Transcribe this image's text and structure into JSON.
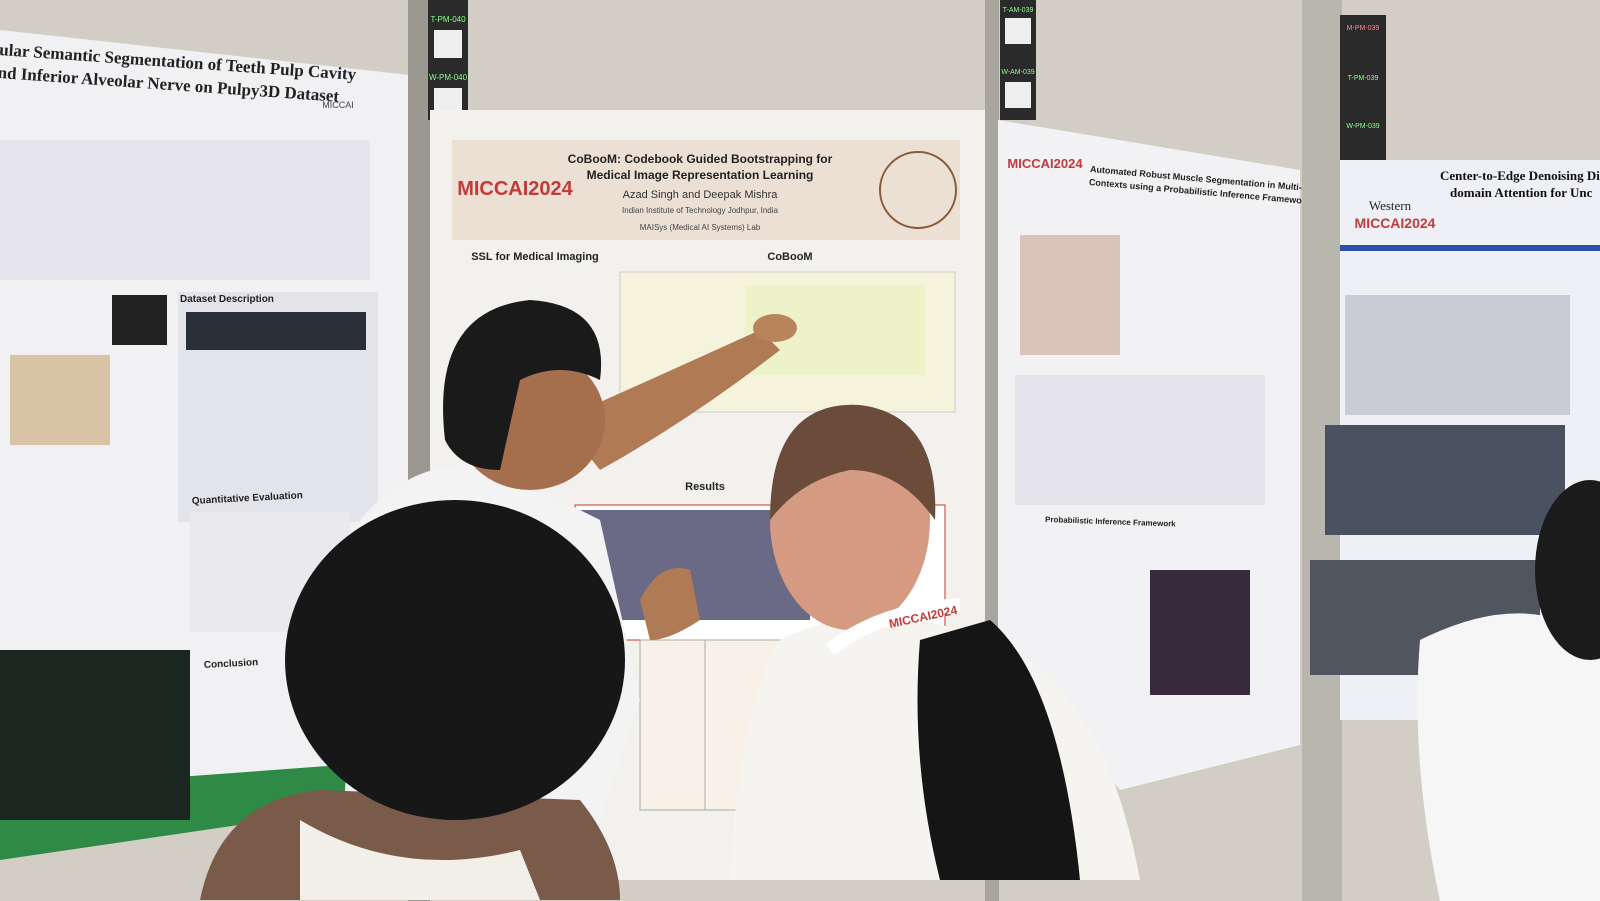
{
  "left_poster": {
    "title_lines": [
      "ular Semantic Segmentation of Teeth Pulp Cavity",
      "nd Inferior Alveolar Nerve on Pulpy3D Dataset"
    ],
    "logo": "MICCAI",
    "sections": [
      "Dataset Description",
      "Quantitative Evaluation",
      "Conclusion"
    ]
  },
  "center_poster": {
    "title_lines": [
      "CoBooM: Codebook Guided Bootstrapping for",
      "Medical Image Representation Learning"
    ],
    "authors": "Azad Singh and Deepak Mishra",
    "affiliation": "Indian Institute of Technology Jodhpur, India",
    "lab": "MAISys (Medical AI Systems) Lab",
    "logo": "MICCAI2024",
    "sections": [
      "SSL for Medical Imaging",
      "CoBooM",
      "Results"
    ]
  },
  "right_poster": {
    "title_lines": [
      "Automated Robust Muscle Segmentation in Multi-level",
      "Contexts using a Probabilistic Inference Framework"
    ],
    "logo": "MICCAI2024",
    "sections": [
      "Probabilistic Inference Framework"
    ]
  },
  "far_right_poster": {
    "title_lines": [
      "Center-to-Edge Denoising Diff",
      "domain Attention for Unc"
    ],
    "institution": "Western",
    "logo": "MICCAI2024"
  },
  "booth_tags": [
    "T-PM-040",
    "W-PM-040",
    "T-AM-039",
    "W-AM-039",
    "M-PM-039",
    "T-PM-039",
    "W-PM-039"
  ],
  "lanyard": "MICCAI2024"
}
